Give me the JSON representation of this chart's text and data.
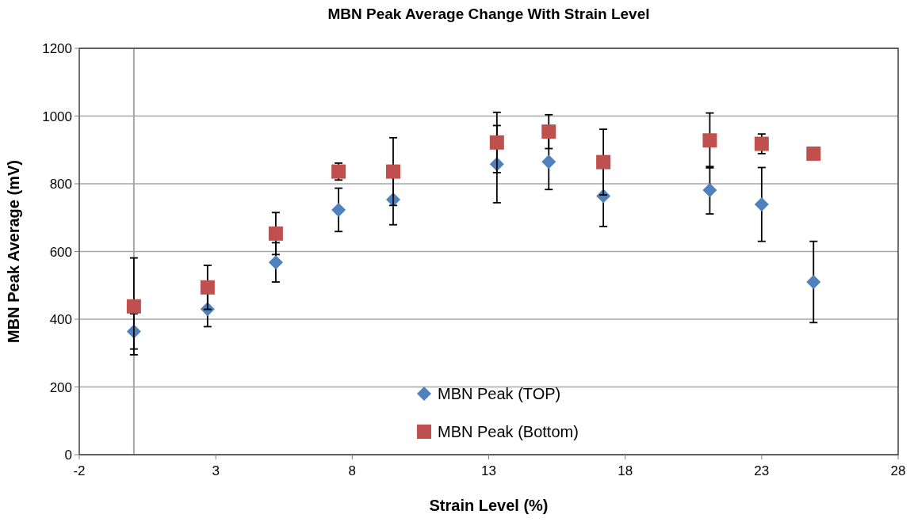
{
  "chart_data": {
    "type": "scatter",
    "title": "MBN Peak Average Change With Strain Level",
    "xlabel": "Strain Level (%)",
    "ylabel": "MBN Peak Average (mV)",
    "xlim": [
      -2,
      28
    ],
    "xticks": [
      -2,
      3,
      8,
      13,
      18,
      23,
      28
    ],
    "ylim": [
      0,
      1200
    ],
    "yticks": [
      0,
      200,
      400,
      600,
      800,
      1000,
      1200
    ],
    "grid": "y",
    "legend": "bottom",
    "ref_lines": [
      {
        "axis": "x",
        "value": 0,
        "color": "#a6a6a6"
      }
    ],
    "series": [
      {
        "name": "MBN Peak (TOP)",
        "color": "#4f81bd",
        "marker": "diamond",
        "x": [
          0,
          2.7,
          5.2,
          7.5,
          9.5,
          13.3,
          15.2,
          17.2,
          21.1,
          23,
          24.9
        ],
        "values": [
          364,
          430,
          568,
          723,
          753,
          858,
          865,
          764,
          781,
          739,
          510
        ],
        "errors": [
          52,
          52,
          58,
          64,
          74,
          114,
          82,
          90,
          70,
          109,
          120
        ]
      },
      {
        "name": "MBN Peak (Bottom)",
        "color": "#c0504d",
        "marker": "square",
        "x": [
          0,
          2.7,
          5.2,
          7.5,
          9.5,
          13.3,
          15.2,
          17.2,
          21.1,
          23,
          24.9
        ],
        "values": [
          438,
          494,
          653,
          836,
          836,
          922,
          954,
          864,
          928,
          918,
          889
        ],
        "errors": [
          143,
          65,
          62,
          25,
          100,
          89,
          50,
          97,
          81,
          29,
          null
        ]
      }
    ]
  }
}
